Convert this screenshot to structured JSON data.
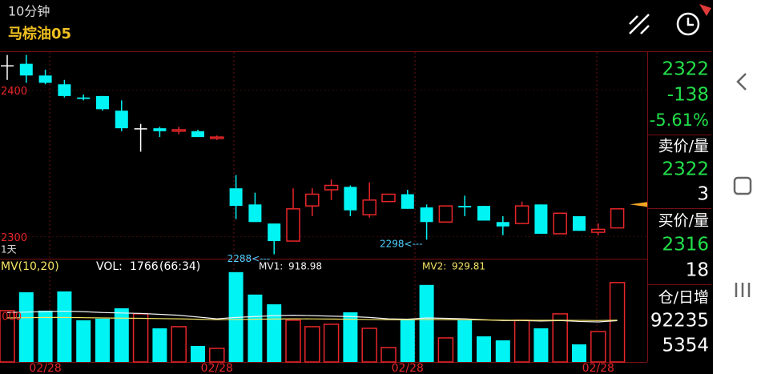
{
  "header": {
    "timeframe": "10分钟",
    "symbol": "马棕油05"
  },
  "side": {
    "last": 2322,
    "change": -138,
    "change_pct": "-5.61%",
    "ask_title": "卖价/量",
    "ask": 2322,
    "ask_vol": 3,
    "bid_title": "买价/量",
    "bid": 2316,
    "bid_vol": 18,
    "oi_title": "仓/日增",
    "oi": 92235,
    "oi_change": 5354
  },
  "chart_data": [
    {
      "type": "candlestick",
      "period_label": "1天",
      "up_color": "#e8262a",
      "down_color": "#00f4f4",
      "flat_color": "#ffffff",
      "ylim": [
        2285,
        2426
      ],
      "yticks": [
        2400,
        2300
      ],
      "categories": [
        null,
        null,
        "02/28",
        null,
        null,
        null,
        null,
        null,
        null,
        null,
        null,
        "02/28",
        null,
        null,
        null,
        null,
        null,
        null,
        null,
        null,
        null,
        "02/28",
        null,
        null,
        null,
        null,
        null,
        null,
        null,
        null,
        null,
        "02/28",
        null
      ],
      "open": [
        2417,
        2418,
        2410,
        2404,
        2395,
        2396,
        2386,
        2374,
        2374,
        2372,
        2372,
        2367,
        2333,
        2322,
        2309,
        2297,
        2321,
        2332,
        2334,
        2315,
        2324,
        2329,
        2320,
        2310,
        2321,
        2321,
        2310,
        2309,
        2322,
        2302,
        2314,
        2303,
        2306
      ],
      "high": [
        2424,
        2424,
        2414,
        2407,
        2397,
        2396,
        2393,
        2377,
        2375,
        2375,
        2373,
        2369,
        2342,
        2330,
        2309,
        2333,
        2333,
        2339,
        2335,
        2337,
        2329,
        2332,
        2322,
        2321,
        2328,
        2321,
        2314,
        2324,
        2322,
        2316,
        2314,
        2309,
        2319
      ],
      "low": [
        2407,
        2405,
        2404,
        2395,
        2393,
        2386,
        2372,
        2358,
        2368,
        2370,
        2368,
        2366,
        2312,
        2310,
        2288,
        2297,
        2314,
        2325,
        2314,
        2313,
        2324,
        2319,
        2298,
        2310,
        2314,
        2311,
        2301,
        2309,
        2302,
        2302,
        2304,
        2301,
        2306
      ],
      "close": [
        2417,
        2410,
        2405,
        2396,
        2394,
        2387,
        2374,
        2374,
        2372,
        2373,
        2368,
        2368,
        2321,
        2310,
        2297,
        2319,
        2329,
        2335,
        2318,
        2325,
        2329,
        2319,
        2310,
        2321,
        2320,
        2311,
        2307,
        2321,
        2302,
        2316,
        2304,
        2305,
        2319
      ],
      "annotations": [
        {
          "value": 2288,
          "label": "2288<---"
        },
        {
          "value": 2298,
          "label": "2298<---"
        }
      ]
    },
    {
      "type": "bar",
      "title": "MV(10,20)",
      "vol_label": "VOL:",
      "ratio_label": "(66:34)",
      "ylim": [
        0,
        2030
      ],
      "yticks": [
        1000
      ],
      "values": [
        1142,
        1552,
        1142,
        1570,
        928,
        963,
        1195,
        1070,
        749,
        785,
        357,
        303,
        1998,
        1499,
        1284,
        928,
        785,
        839,
        1106,
        749,
        321,
        963,
        1713,
        535,
        928,
        571,
        482,
        928,
        749,
        1070,
        392,
        678,
        1766
      ],
      "series": [
        {
          "name": "MV1:",
          "color": "#f2f2f2",
          "values": [
            1100,
            1110,
            1120,
            1130,
            1120,
            1100,
            1090,
            1080,
            1060,
            1040,
            1000,
            960,
            990,
            1010,
            1030,
            1040,
            1030,
            1020,
            1010,
            990,
            960,
            950,
            980,
            970,
            960,
            940,
            920,
            920,
            910,
            920,
            900,
            890,
            918.98
          ]
        },
        {
          "name": "MV2:",
          "color": "#f5e463",
          "values": [
            980,
            985,
            990,
            990,
            985,
            980,
            975,
            970,
            965,
            960,
            950,
            940,
            945,
            950,
            955,
            960,
            958,
            955,
            950,
            945,
            940,
            938,
            945,
            942,
            940,
            935,
            930,
            928,
            926,
            928,
            925,
            922,
            929.81
          ]
        }
      ]
    }
  ]
}
